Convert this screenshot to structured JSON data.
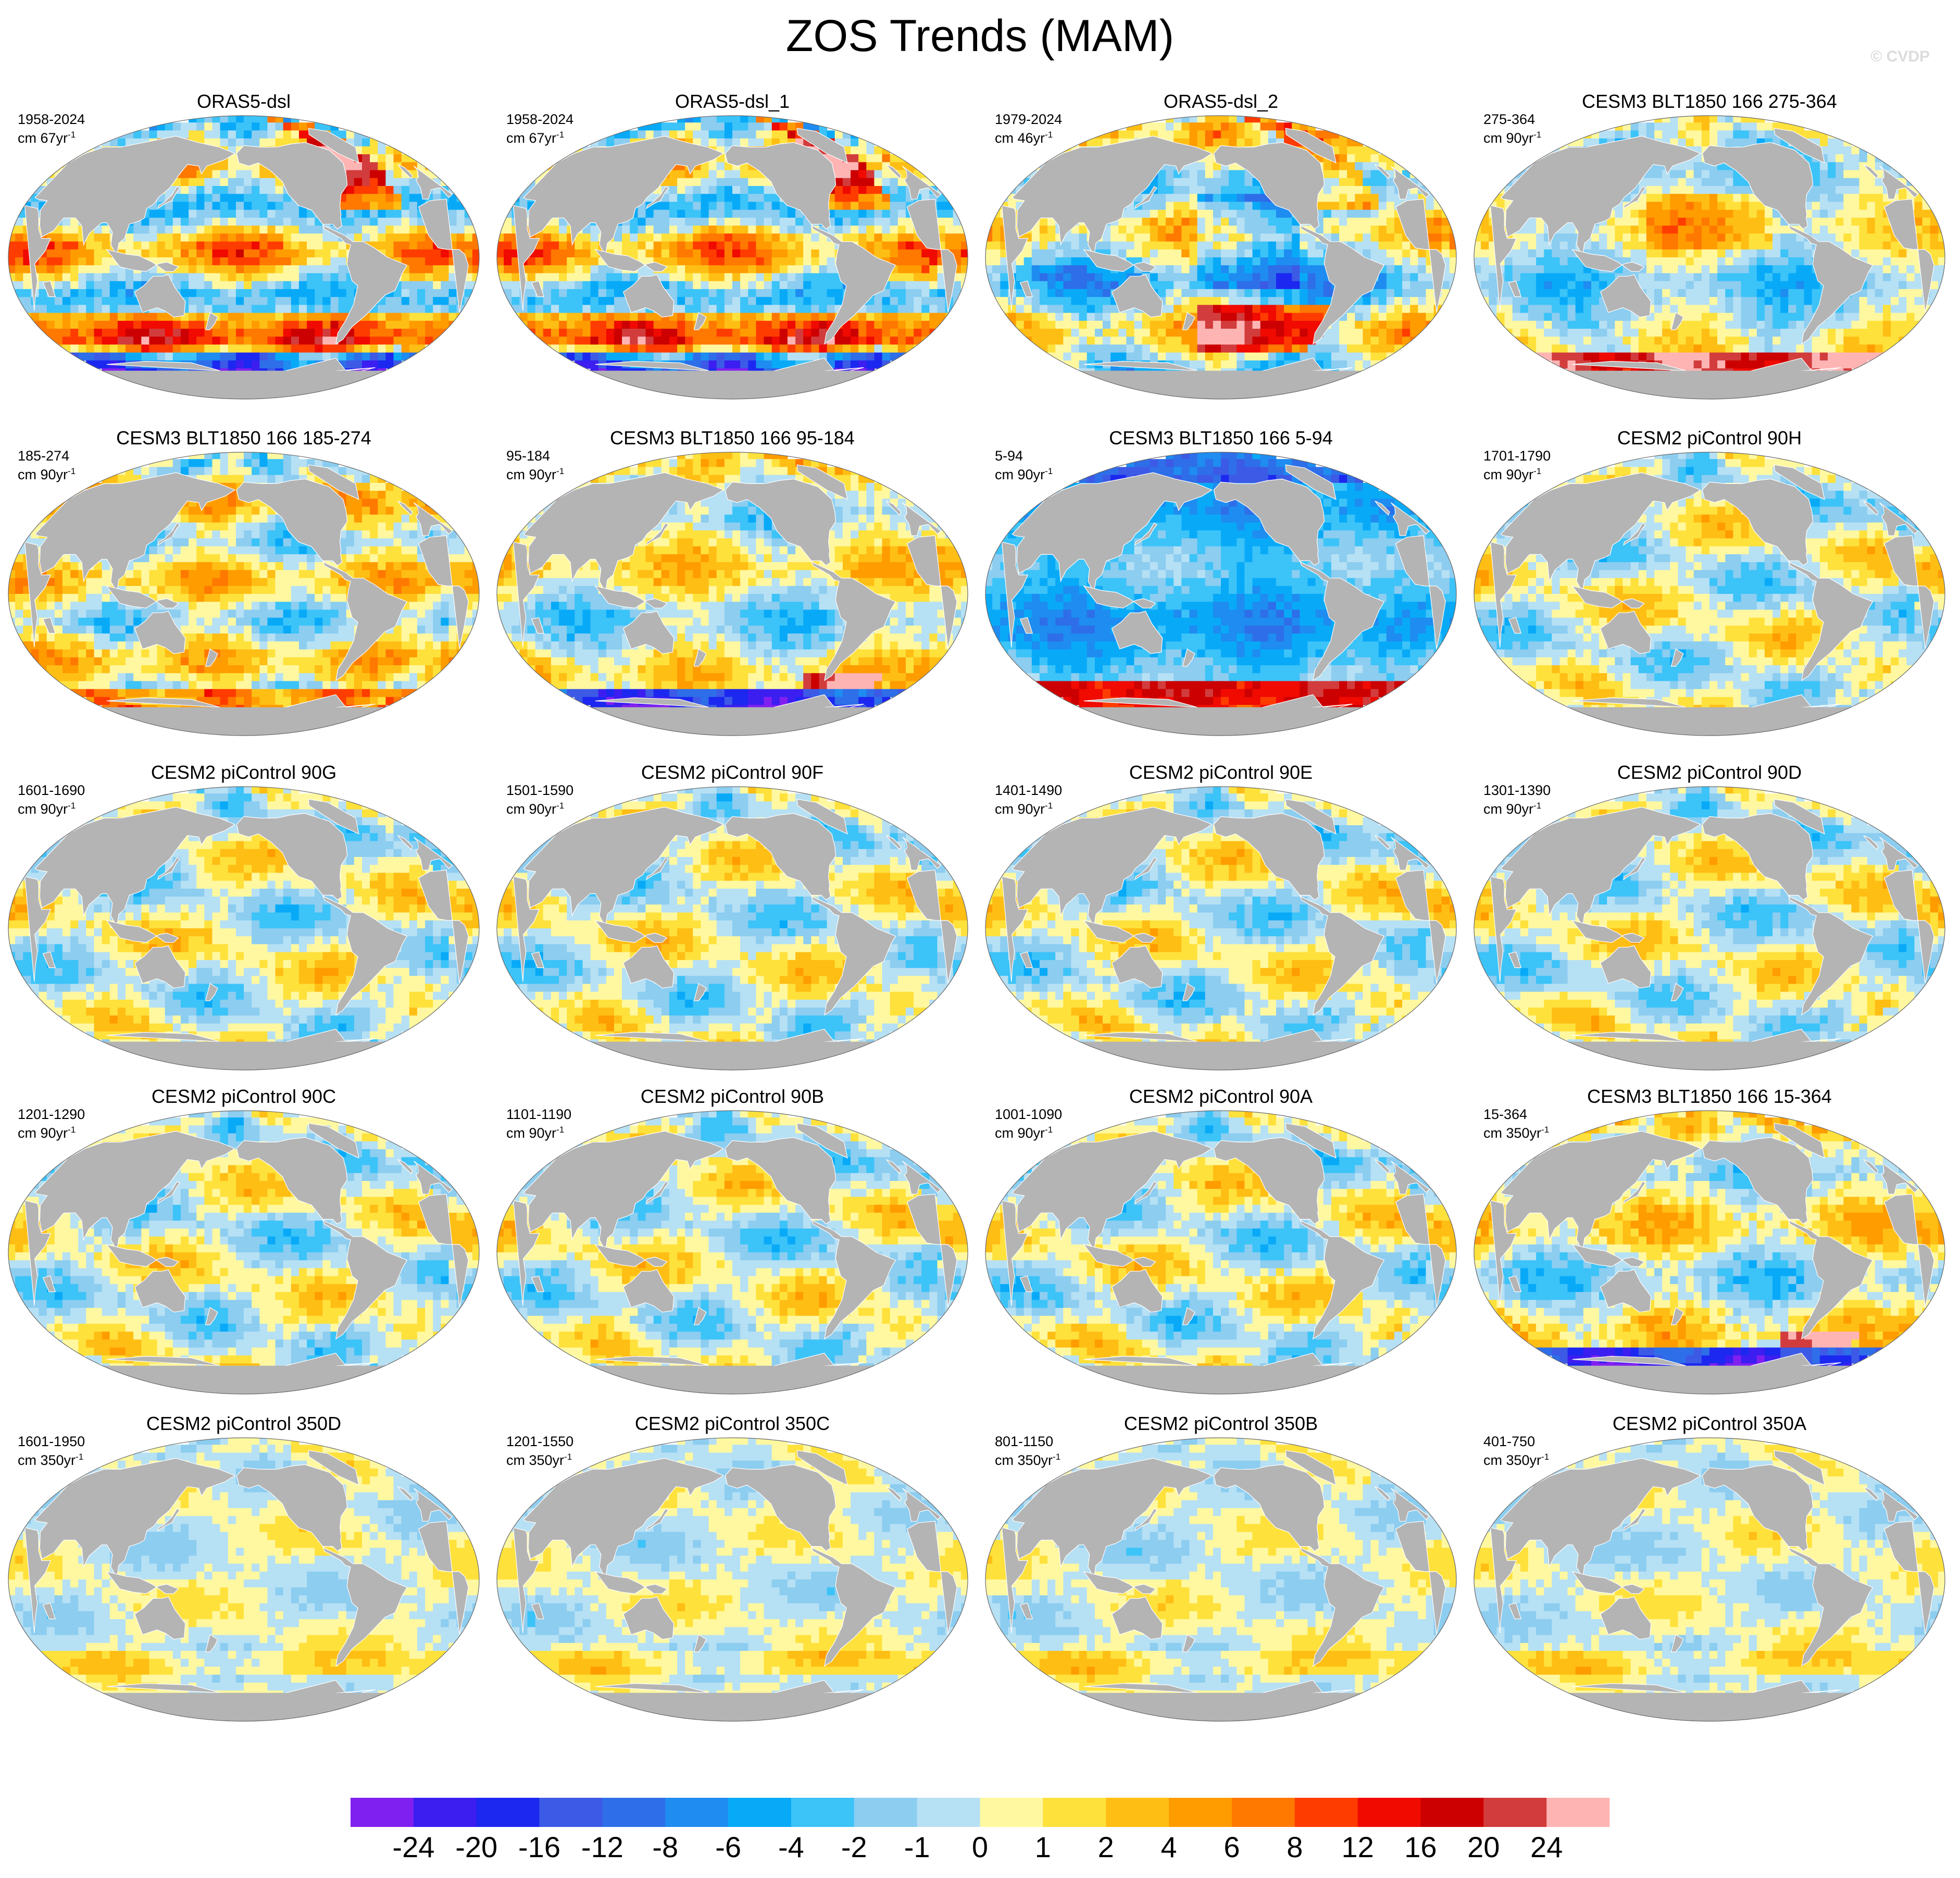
{
  "title": "ZOS Trends (MAM)",
  "watermark": "© CVDP",
  "colors": {
    "land": "#b4b4b4",
    "coast": "#ffffff",
    "background": "#ffffff"
  },
  "panels": [
    {
      "title": "ORAS5-dsl",
      "period": "1958-2024",
      "units": "cm 67yr",
      "exp": "-1",
      "theme": "obs"
    },
    {
      "title": "ORAS5-dsl_1",
      "period": "1958-2024",
      "units": "cm 67yr",
      "exp": "-1",
      "theme": "obs"
    },
    {
      "title": "ORAS5-dsl_2",
      "period": "1979-2024",
      "units": "cm 46yr",
      "exp": "-1",
      "theme": "obs2"
    },
    {
      "title": "CESM3 BLT1850 166 275-364",
      "period": "275-364",
      "units": "cm 90yr",
      "exp": "-1",
      "theme": "model-south-hot"
    },
    {
      "title": "CESM3 BLT1850 166 185-274",
      "period": "185-274",
      "units": "cm 90yr",
      "exp": "-1",
      "theme": "model-strong"
    },
    {
      "title": "CESM3 BLT1850 166 95-184",
      "period": "95-184",
      "units": "cm 90yr",
      "exp": "-1",
      "theme": "model-south-cold"
    },
    {
      "title": "CESM3 BLT1850 166 5-94",
      "period": "5-94",
      "units": "cm 90yr",
      "exp": "-1",
      "theme": "model-blue-south-hot"
    },
    {
      "title": "CESM2 piControl 90H",
      "period": "1701-1790",
      "units": "cm 90yr",
      "exp": "-1",
      "theme": "model-mild"
    },
    {
      "title": "CESM2 piControl 90G",
      "period": "1601-1690",
      "units": "cm 90yr",
      "exp": "-1",
      "theme": "model-mild"
    },
    {
      "title": "CESM2 piControl 90F",
      "period": "1501-1590",
      "units": "cm 90yr",
      "exp": "-1",
      "theme": "model-mild"
    },
    {
      "title": "CESM2 piControl 90E",
      "period": "1401-1490",
      "units": "cm 90yr",
      "exp": "-1",
      "theme": "model-mild"
    },
    {
      "title": "CESM2 piControl 90D",
      "period": "1301-1390",
      "units": "cm 90yr",
      "exp": "-1",
      "theme": "model-mild"
    },
    {
      "title": "CESM2 piControl 90C",
      "period": "1201-1290",
      "units": "cm 90yr",
      "exp": "-1",
      "theme": "model-mild"
    },
    {
      "title": "CESM2 piControl 90B",
      "period": "1101-1190",
      "units": "cm 90yr",
      "exp": "-1",
      "theme": "model-mild"
    },
    {
      "title": "CESM2 piControl 90A",
      "period": "1001-1090",
      "units": "cm 90yr",
      "exp": "-1",
      "theme": "model-mild"
    },
    {
      "title": "CESM3 BLT1850 166 15-364",
      "period": "15-364",
      "units": "cm 350yr",
      "exp": "-1",
      "theme": "model-south-cold"
    },
    {
      "title": "CESM2 piControl 350D",
      "period": "1601-1950",
      "units": "cm 350yr",
      "exp": "-1",
      "theme": "model-weak"
    },
    {
      "title": "CESM2 piControl 350C",
      "period": "1201-1550",
      "units": "cm 350yr",
      "exp": "-1",
      "theme": "model-weak"
    },
    {
      "title": "CESM2 piControl 350B",
      "period": "801-1150",
      "units": "cm 350yr",
      "exp": "-1",
      "theme": "model-weak"
    },
    {
      "title": "CESM2 piControl 350A",
      "period": "401-750",
      "units": "cm 350yr",
      "exp": "-1",
      "theme": "model-weak"
    }
  ],
  "colorbar": {
    "labels": [
      "-24",
      "-20",
      "-16",
      "-12",
      "-8",
      "-6",
      "-4",
      "-2",
      "-1",
      "0",
      "1",
      "2",
      "4",
      "6",
      "8",
      "12",
      "16",
      "20",
      "24"
    ],
    "colors": [
      "#8020f0",
      "#3c1ef0",
      "#1c28f0",
      "#3c5ae6",
      "#2e6ee8",
      "#1e8cf0",
      "#08aaf8",
      "#3cc3f8",
      "#8ccdf0",
      "#b6e0f4",
      "#fff8a0",
      "#ffe13c",
      "#ffbe14",
      "#ff9c00",
      "#ff7800",
      "#ff3c00",
      "#f00a00",
      "#cc0000",
      "#d23c3c",
      "#ffb4b4"
    ]
  }
}
